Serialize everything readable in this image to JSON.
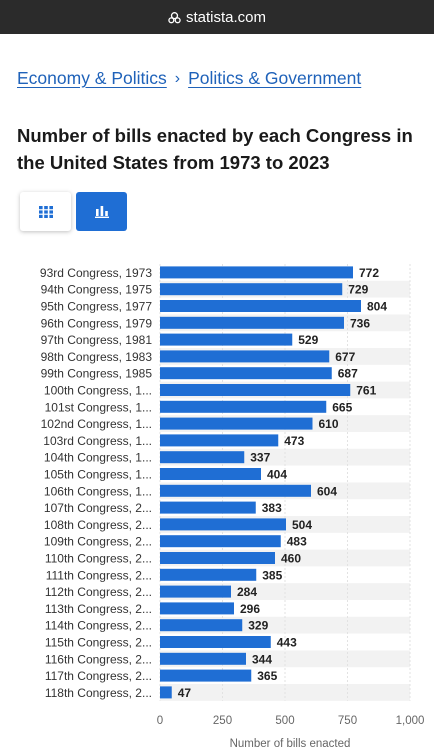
{
  "browser": {
    "url": "statista.com",
    "lock_icon": "lock-icon"
  },
  "breadcrumb": {
    "items": [
      "Economy & Politics",
      "Politics & Government"
    ],
    "separator": "›"
  },
  "page": {
    "title": "Number of bills enacted by each Congress in the United States from 1973 to 2023"
  },
  "view_toggle": {
    "table_icon": "grid-icon",
    "chart_icon": "bar-chart-icon",
    "active": "chart"
  },
  "colors": {
    "bar": "#1f6ed4",
    "accent": "#1f62b9",
    "stripe": "#f2f2f2"
  },
  "chart_data": {
    "type": "bar",
    "orientation": "horizontal",
    "categories": [
      "93rd Congress, 1973",
      "94th Congress, 1975",
      "95th Congress, 1977",
      "96th Congress, 1979",
      "97th Congress, 1981",
      "98th Congress, 1983",
      "99th Congress, 1985",
      "100th Congress, 1...",
      "101st Congress, 1...",
      "102nd Congress, 1...",
      "103rd Congress, 1...",
      "104th Congress, 1...",
      "105th Congress, 1...",
      "106th Congress, 1...",
      "107th Congress, 2...",
      "108th Congress, 2...",
      "109th Congress, 2...",
      "110th Congress, 2...",
      "111th Congress, 2...",
      "112th Congress, 2...",
      "113th Congress, 2...",
      "114th Congress, 2...",
      "115th Congress, 2...",
      "116th Congress, 2...",
      "117th Congress, 2...",
      "118th Congress, 2..."
    ],
    "values": [
      772,
      729,
      804,
      736,
      529,
      677,
      687,
      761,
      665,
      610,
      473,
      337,
      404,
      604,
      383,
      504,
      483,
      460,
      385,
      284,
      296,
      329,
      443,
      344,
      365,
      47
    ],
    "xlabel": "Number of bills enacted",
    "ylabel": "",
    "xlim": [
      0,
      1000
    ],
    "xticks": [
      "0",
      "250",
      "500",
      "750",
      "1,000"
    ],
    "grid": true,
    "legend": "none"
  }
}
